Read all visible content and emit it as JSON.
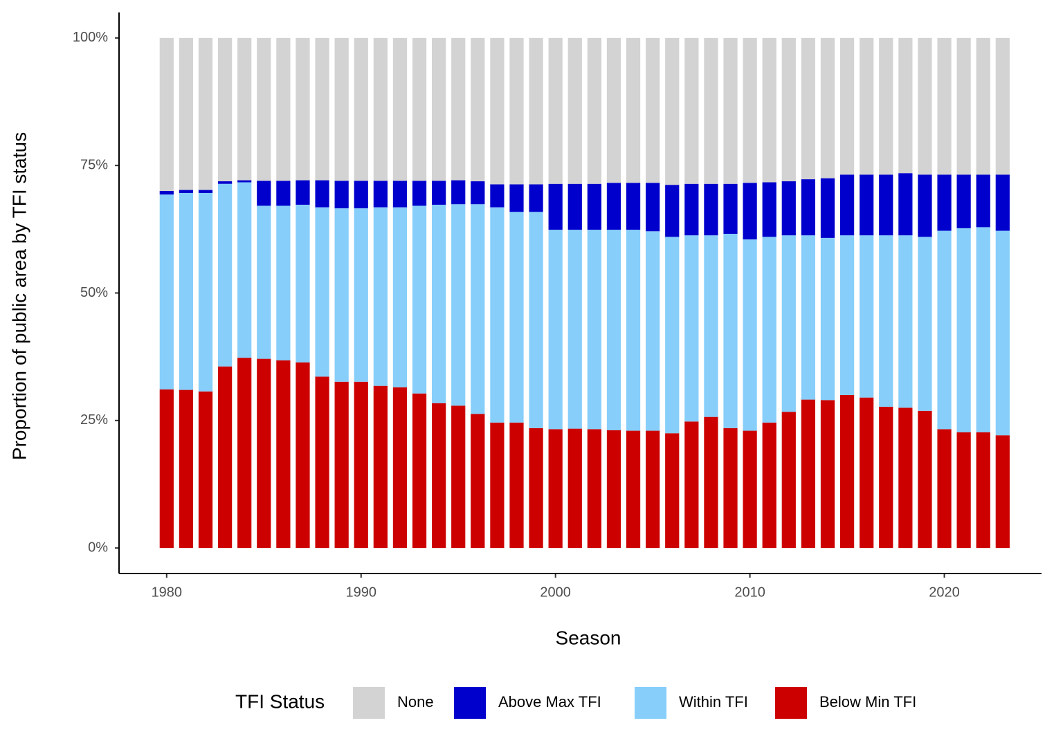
{
  "chart_data": {
    "type": "stacked_bar",
    "x_label": "Season",
    "y_label": "Proportion of public area by TFI status",
    "legend_title": "TFI Status",
    "x": [
      1980,
      1981,
      1982,
      1983,
      1984,
      1985,
      1986,
      1987,
      1988,
      1989,
      1990,
      1991,
      1992,
      1993,
      1994,
      1995,
      1996,
      1997,
      1998,
      1999,
      2000,
      2001,
      2002,
      2003,
      2004,
      2005,
      2006,
      2007,
      2008,
      2009,
      2010,
      2011,
      2012,
      2013,
      2014,
      2015,
      2016,
      2017,
      2018,
      2019,
      2020,
      2021,
      2022,
      2023
    ],
    "series": [
      {
        "name": "None",
        "color": "#d3d3d3",
        "values": [
          30.0,
          29.8,
          29.8,
          28.1,
          27.9,
          28.0,
          28.0,
          27.9,
          27.9,
          28.0,
          28.0,
          28.0,
          28.0,
          28.0,
          28.0,
          27.9,
          28.1,
          28.7,
          28.7,
          28.7,
          28.6,
          28.6,
          28.6,
          28.4,
          28.4,
          28.4,
          28.8,
          28.6,
          28.6,
          28.6,
          28.4,
          28.3,
          28.1,
          27.7,
          27.5,
          26.8,
          26.8,
          26.8,
          26.5,
          26.8,
          26.8,
          26.8,
          26.8,
          26.8
        ]
      },
      {
        "name": "Above Max TFI",
        "color": "#0000cd",
        "values": [
          0.7,
          0.6,
          0.6,
          0.5,
          0.4,
          4.9,
          4.9,
          4.8,
          5.3,
          5.4,
          5.4,
          5.2,
          5.2,
          4.9,
          4.7,
          4.7,
          4.5,
          4.5,
          5.4,
          5.4,
          9.0,
          9.0,
          9.0,
          9.2,
          9.2,
          9.5,
          10.2,
          10.1,
          10.1,
          9.8,
          11.1,
          10.7,
          10.6,
          11.0,
          11.7,
          11.9,
          11.9,
          11.9,
          12.2,
          12.2,
          11.0,
          10.5,
          10.3,
          11.0
        ]
      },
      {
        "name": "Within TFI",
        "color": "#87cefa",
        "values": [
          38.2,
          38.6,
          38.9,
          35.8,
          34.4,
          30.0,
          30.3,
          30.9,
          33.2,
          34.0,
          34.0,
          35.0,
          35.3,
          36.8,
          38.9,
          39.5,
          41.1,
          42.2,
          41.3,
          42.4,
          39.1,
          39.0,
          39.1,
          39.3,
          39.4,
          39.1,
          38.5,
          36.5,
          35.6,
          38.1,
          37.5,
          36.4,
          34.6,
          32.2,
          31.8,
          31.3,
          31.8,
          33.6,
          33.8,
          34.1,
          38.9,
          40.0,
          40.2,
          40.1
        ]
      },
      {
        "name": "Below Min TFI",
        "color": "#cd0000",
        "values": [
          31.1,
          31.0,
          30.7,
          35.6,
          37.3,
          37.1,
          36.8,
          36.4,
          33.6,
          32.6,
          32.6,
          31.8,
          31.5,
          30.3,
          28.4,
          27.9,
          26.3,
          24.6,
          24.6,
          23.5,
          23.3,
          23.4,
          23.3,
          23.1,
          23.0,
          23.0,
          22.5,
          24.8,
          25.7,
          23.5,
          23.0,
          24.6,
          26.7,
          29.1,
          29.0,
          30.0,
          29.5,
          27.7,
          27.5,
          26.9,
          23.3,
          22.7,
          22.7,
          22.1
        ]
      }
    ],
    "xlim": [
      1977.55,
      2025
    ],
    "xticks": [
      1980,
      1990,
      2000,
      2010,
      2020
    ],
    "ylim": [
      -5,
      105
    ],
    "yticks": [
      {
        "value": 0,
        "label": "0%"
      },
      {
        "value": 25,
        "label": "25%"
      },
      {
        "value": 50,
        "label": "50%"
      },
      {
        "value": 75,
        "label": "75%"
      },
      {
        "value": 100,
        "label": "100%"
      }
    ],
    "legend_position": "bottom"
  }
}
